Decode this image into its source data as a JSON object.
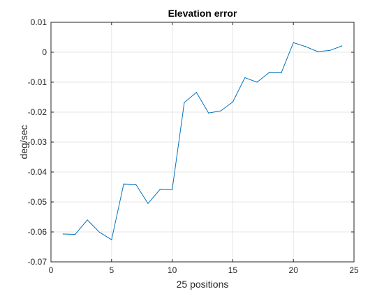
{
  "chart_data": {
    "type": "line",
    "title": "Elevation error",
    "xlabel": "25 positions",
    "ylabel": "deg/sec",
    "xlim": [
      0,
      25
    ],
    "ylim": [
      -0.07,
      0.01
    ],
    "xticks": [
      0,
      5,
      10,
      15,
      20,
      25
    ],
    "xtick_labels": [
      "0",
      "5",
      "10",
      "15",
      "20",
      "25"
    ],
    "yticks": [
      -0.07,
      -0.06,
      -0.05,
      -0.04,
      -0.03,
      -0.02,
      -0.01,
      0,
      0.01
    ],
    "ytick_labels": [
      "-0.07",
      "-0.06",
      "-0.05",
      "-0.04",
      "-0.03",
      "-0.02",
      "-0.01",
      "0",
      "0.01"
    ],
    "grid": true,
    "series": [
      {
        "color": "#0072bd",
        "x": [
          1,
          2,
          3,
          4,
          5,
          6,
          7,
          8,
          9,
          10,
          11,
          12,
          13,
          14,
          15,
          16,
          17,
          18,
          19,
          20,
          21,
          22,
          23,
          24
        ],
        "y": [
          -0.0607,
          -0.0608,
          -0.056,
          -0.0601,
          -0.0626,
          -0.044,
          -0.0441,
          -0.0505,
          -0.0458,
          -0.0459,
          -0.0168,
          -0.0134,
          -0.0203,
          -0.0196,
          -0.0166,
          -0.0085,
          -0.01,
          -0.0068,
          -0.0069,
          0.0032,
          0.0019,
          0.0002,
          0.0006,
          0.0021
        ]
      }
    ]
  }
}
